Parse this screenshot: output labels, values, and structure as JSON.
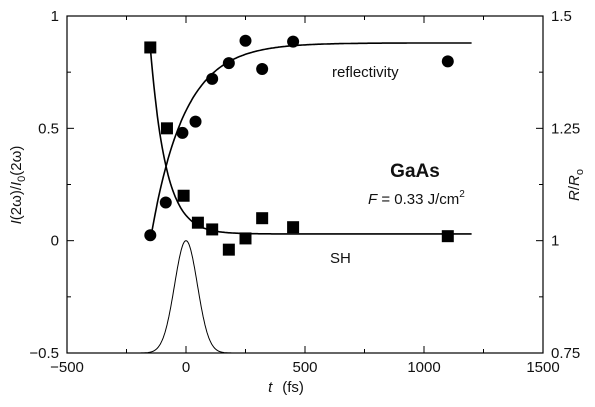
{
  "chart_data": {
    "type": "scatter",
    "title": "",
    "xlabel": {
      "italic": "t",
      "plain": "(fs)"
    },
    "ylabel_left": {
      "parts": [
        [
          "I",
          "i"
        ],
        [
          "(2ω)/",
          "n"
        ],
        [
          "I",
          "i"
        ],
        [
          "0",
          "sub"
        ],
        [
          "(2ω)",
          "n"
        ]
      ]
    },
    "ylabel_right": {
      "parts": [
        [
          "R",
          "i"
        ],
        [
          "/",
          "n"
        ],
        [
          "R",
          "i"
        ],
        [
          "o",
          "sub"
        ]
      ]
    },
    "xlim": [
      -500,
      1500
    ],
    "ylim_left": [
      -0.5,
      1
    ],
    "ylim_right": [
      0.75,
      1.5
    ],
    "xticks": [
      {
        "value": -500,
        "label": "−500"
      },
      {
        "value": 0,
        "label": "0"
      },
      {
        "value": 500,
        "label": "500"
      },
      {
        "value": 1000,
        "label": "1000"
      },
      {
        "value": 1500,
        "label": "1500"
      }
    ],
    "yticks_left": [
      {
        "value": -0.5,
        "label": "−0.5"
      },
      {
        "value": 0,
        "label": "0"
      },
      {
        "value": 0.5,
        "label": "0.5"
      },
      {
        "value": 1,
        "label": "1"
      }
    ],
    "yticks_right": [
      {
        "value": 0.75,
        "label": "0.75"
      },
      {
        "value": 1,
        "label": "1"
      },
      {
        "value": 1.25,
        "label": "1.25"
      },
      {
        "value": 1.5,
        "label": "1.5"
      }
    ],
    "grid": false,
    "legend": "none",
    "series": [
      {
        "name": "SH",
        "marker": "square",
        "axis": "left",
        "points": [
          [
            -150,
            0.86
          ],
          [
            -80,
            0.5
          ],
          [
            -10,
            0.2
          ],
          [
            50,
            0.08
          ],
          [
            110,
            0.05
          ],
          [
            180,
            -0.04
          ],
          [
            250,
            0.01
          ],
          [
            320,
            0.1
          ],
          [
            450,
            0.06
          ],
          [
            1100,
            0.02
          ]
        ]
      },
      {
        "name": "reflectivity",
        "marker": "circle",
        "axis": "right",
        "points": [
          [
            -150,
            1.012
          ],
          [
            -85,
            1.085
          ],
          [
            -15,
            1.24
          ],
          [
            40,
            1.265
          ],
          [
            110,
            1.36
          ],
          [
            180,
            1.395
          ],
          [
            250,
            1.445
          ],
          [
            320,
            1.382
          ],
          [
            450,
            1.443
          ],
          [
            1100,
            1.399
          ]
        ]
      }
    ],
    "fit_curves": [
      {
        "name": "SH fit",
        "axis": "left",
        "x_start": -150,
        "x_end": 1200,
        "start": 0.86,
        "plateau": 0.03,
        "tau": 65
      },
      {
        "name": "reflectivity fit",
        "axis": "right",
        "x_start": -150,
        "x_end": 1200,
        "start": 1.0,
        "plateau": 1.44,
        "tau": 140
      }
    ],
    "pulse": {
      "axis": "left",
      "base": -0.5,
      "amplitude": 0.5,
      "center": 0,
      "sigma": 48
    },
    "annotations": {
      "material": "GaAs",
      "fluence": {
        "italic": "F",
        "text": " = 0.33 J/cm",
        "sup": "2"
      },
      "reflectivity_label": "reflectivity",
      "sh_label": "SH"
    }
  }
}
